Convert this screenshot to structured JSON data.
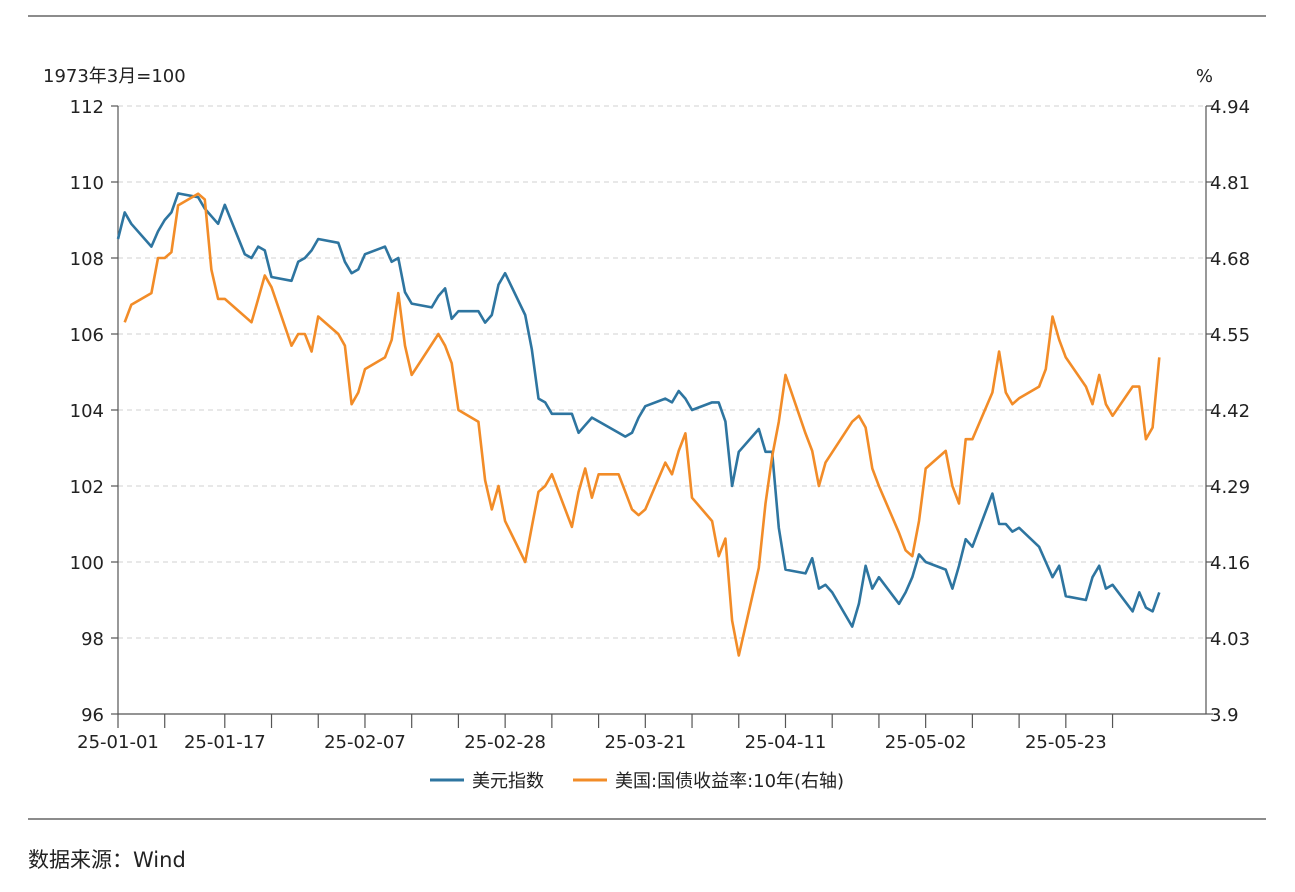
{
  "source_label": "数据来源：Wind",
  "colors": {
    "usd_index": "#2e75a0",
    "us_10y_yield": "#f28c28",
    "grid": "#d0d0d0",
    "axis": "#555555"
  },
  "chart_data": {
    "type": "line",
    "left_axis_unit": "1973年3月=100",
    "right_axis_unit": "%",
    "left_ylim": [
      96,
      112
    ],
    "left_ticks": [
      "96",
      "98",
      "100",
      "102",
      "104",
      "106",
      "108",
      "110",
      "112"
    ],
    "right_ylim": [
      3.9,
      4.94
    ],
    "right_ticks": [
      "3.9",
      "4.03",
      "4.16",
      "4.29",
      "4.42",
      "4.55",
      "4.68",
      "4.81",
      "4.94"
    ],
    "x_range": [
      "2025-01-01",
      "2025-06-13"
    ],
    "x_tick_dates": [
      "2025-01-01",
      "2025-01-08",
      "2025-01-17",
      "2025-01-24",
      "2025-01-31",
      "2025-02-07",
      "2025-02-14",
      "2025-02-21",
      "2025-02-28",
      "2025-03-07",
      "2025-03-14",
      "2025-03-21",
      "2025-03-28",
      "2025-04-04",
      "2025-04-11",
      "2025-04-18",
      "2025-04-25",
      "2025-05-02",
      "2025-05-09",
      "2025-05-16",
      "2025-05-23",
      "2025-05-30"
    ],
    "x_labels": [
      {
        "date": "2025-01-01",
        "label": "25-01-01"
      },
      {
        "date": "2025-01-17",
        "label": "25-01-17"
      },
      {
        "date": "2025-02-07",
        "label": "25-02-07"
      },
      {
        "date": "2025-02-28",
        "label": "25-02-28"
      },
      {
        "date": "2025-03-21",
        "label": "25-03-21"
      },
      {
        "date": "2025-04-11",
        "label": "25-04-11"
      },
      {
        "date": "2025-05-02",
        "label": "25-05-02"
      },
      {
        "date": "2025-05-23",
        "label": "25-05-23"
      }
    ],
    "grid": "horizontal dashed",
    "legend_position": "bottom-center",
    "series": [
      {
        "name": "美元指数",
        "axis": "left",
        "points": [
          [
            "2025-01-01",
            108.5
          ],
          [
            "2025-01-02",
            109.2
          ],
          [
            "2025-01-03",
            108.9
          ],
          [
            "2025-01-06",
            108.3
          ],
          [
            "2025-01-07",
            108.7
          ],
          [
            "2025-01-08",
            109.0
          ],
          [
            "2025-01-09",
            109.2
          ],
          [
            "2025-01-10",
            109.7
          ],
          [
            "2025-01-13",
            109.6
          ],
          [
            "2025-01-14",
            109.3
          ],
          [
            "2025-01-15",
            109.1
          ],
          [
            "2025-01-16",
            108.9
          ],
          [
            "2025-01-17",
            109.4
          ],
          [
            "2025-01-20",
            108.1
          ],
          [
            "2025-01-21",
            108.0
          ],
          [
            "2025-01-22",
            108.3
          ],
          [
            "2025-01-23",
            108.2
          ],
          [
            "2025-01-24",
            107.5
          ],
          [
            "2025-01-27",
            107.4
          ],
          [
            "2025-01-28",
            107.9
          ],
          [
            "2025-01-29",
            108.0
          ],
          [
            "2025-01-30",
            108.2
          ],
          [
            "2025-01-31",
            108.5
          ],
          [
            "2025-02-03",
            108.4
          ],
          [
            "2025-02-04",
            107.9
          ],
          [
            "2025-02-05",
            107.6
          ],
          [
            "2025-02-06",
            107.7
          ],
          [
            "2025-02-07",
            108.1
          ],
          [
            "2025-02-10",
            108.3
          ],
          [
            "2025-02-11",
            107.9
          ],
          [
            "2025-02-12",
            108.0
          ],
          [
            "2025-02-13",
            107.1
          ],
          [
            "2025-02-14",
            106.8
          ],
          [
            "2025-02-17",
            106.7
          ],
          [
            "2025-02-18",
            107.0
          ],
          [
            "2025-02-19",
            107.2
          ],
          [
            "2025-02-20",
            106.4
          ],
          [
            "2025-02-21",
            106.6
          ],
          [
            "2025-02-24",
            106.6
          ],
          [
            "2025-02-25",
            106.3
          ],
          [
            "2025-02-26",
            106.5
          ],
          [
            "2025-02-27",
            107.3
          ],
          [
            "2025-02-28",
            107.6
          ],
          [
            "2025-03-03",
            106.5
          ],
          [
            "2025-03-04",
            105.6
          ],
          [
            "2025-03-05",
            104.3
          ],
          [
            "2025-03-06",
            104.2
          ],
          [
            "2025-03-07",
            103.9
          ],
          [
            "2025-03-10",
            103.9
          ],
          [
            "2025-03-11",
            103.4
          ],
          [
            "2025-03-12",
            103.6
          ],
          [
            "2025-03-13",
            103.8
          ],
          [
            "2025-03-14",
            103.7
          ],
          [
            "2025-03-17",
            103.4
          ],
          [
            "2025-03-18",
            103.3
          ],
          [
            "2025-03-19",
            103.4
          ],
          [
            "2025-03-20",
            103.8
          ],
          [
            "2025-03-21",
            104.1
          ],
          [
            "2025-03-24",
            104.3
          ],
          [
            "2025-03-25",
            104.2
          ],
          [
            "2025-03-26",
            104.5
          ],
          [
            "2025-03-27",
            104.3
          ],
          [
            "2025-03-28",
            104.0
          ],
          [
            "2025-03-31",
            104.2
          ],
          [
            "2025-04-01",
            104.2
          ],
          [
            "2025-04-02",
            103.7
          ],
          [
            "2025-04-03",
            102.0
          ],
          [
            "2025-04-04",
            102.9
          ],
          [
            "2025-04-07",
            103.5
          ],
          [
            "2025-04-08",
            102.9
          ],
          [
            "2025-04-09",
            102.9
          ],
          [
            "2025-04-10",
            100.9
          ],
          [
            "2025-04-11",
            99.8
          ],
          [
            "2025-04-14",
            99.7
          ],
          [
            "2025-04-15",
            100.1
          ],
          [
            "2025-04-16",
            99.3
          ],
          [
            "2025-04-17",
            99.4
          ],
          [
            "2025-04-18",
            99.2
          ],
          [
            "2025-04-21",
            98.3
          ],
          [
            "2025-04-22",
            98.9
          ],
          [
            "2025-04-23",
            99.9
          ],
          [
            "2025-04-24",
            99.3
          ],
          [
            "2025-04-25",
            99.6
          ],
          [
            "2025-04-28",
            98.9
          ],
          [
            "2025-04-29",
            99.2
          ],
          [
            "2025-04-30",
            99.6
          ],
          [
            "2025-05-01",
            100.2
          ],
          [
            "2025-05-02",
            100.0
          ],
          [
            "2025-05-05",
            99.8
          ],
          [
            "2025-05-06",
            99.3
          ],
          [
            "2025-05-07",
            99.9
          ],
          [
            "2025-05-08",
            100.6
          ],
          [
            "2025-05-09",
            100.4
          ],
          [
            "2025-05-12",
            101.8
          ],
          [
            "2025-05-13",
            101.0
          ],
          [
            "2025-05-14",
            101.0
          ],
          [
            "2025-05-15",
            100.8
          ],
          [
            "2025-05-16",
            100.9
          ],
          [
            "2025-05-19",
            100.4
          ],
          [
            "2025-05-20",
            100.0
          ],
          [
            "2025-05-21",
            99.6
          ],
          [
            "2025-05-22",
            99.9
          ],
          [
            "2025-05-23",
            99.1
          ],
          [
            "2025-05-26",
            99.0
          ],
          [
            "2025-05-27",
            99.6
          ],
          [
            "2025-05-28",
            99.9
          ],
          [
            "2025-05-29",
            99.3
          ],
          [
            "2025-05-30",
            99.4
          ],
          [
            "2025-06-02",
            98.7
          ],
          [
            "2025-06-03",
            99.2
          ],
          [
            "2025-06-04",
            98.8
          ],
          [
            "2025-06-05",
            98.7
          ],
          [
            "2025-06-06",
            99.2
          ]
        ]
      },
      {
        "name": "美国:国债收益率:10年(右轴)",
        "axis": "right",
        "points": [
          [
            "2025-01-02",
            4.57
          ],
          [
            "2025-01-03",
            4.6
          ],
          [
            "2025-01-06",
            4.62
          ],
          [
            "2025-01-07",
            4.68
          ],
          [
            "2025-01-08",
            4.68
          ],
          [
            "2025-01-09",
            4.69
          ],
          [
            "2025-01-10",
            4.77
          ],
          [
            "2025-01-13",
            4.79
          ],
          [
            "2025-01-14",
            4.78
          ],
          [
            "2025-01-15",
            4.66
          ],
          [
            "2025-01-16",
            4.61
          ],
          [
            "2025-01-17",
            4.61
          ],
          [
            "2025-01-21",
            4.57
          ],
          [
            "2025-01-22",
            4.61
          ],
          [
            "2025-01-23",
            4.65
          ],
          [
            "2025-01-24",
            4.63
          ],
          [
            "2025-01-27",
            4.53
          ],
          [
            "2025-01-28",
            4.55
          ],
          [
            "2025-01-29",
            4.55
          ],
          [
            "2025-01-30",
            4.52
          ],
          [
            "2025-01-31",
            4.58
          ],
          [
            "2025-02-03",
            4.55
          ],
          [
            "2025-02-04",
            4.53
          ],
          [
            "2025-02-05",
            4.43
          ],
          [
            "2025-02-06",
            4.45
          ],
          [
            "2025-02-07",
            4.49
          ],
          [
            "2025-02-10",
            4.51
          ],
          [
            "2025-02-11",
            4.54
          ],
          [
            "2025-02-12",
            4.62
          ],
          [
            "2025-02-13",
            4.53
          ],
          [
            "2025-02-14",
            4.48
          ],
          [
            "2025-02-18",
            4.55
          ],
          [
            "2025-02-19",
            4.53
          ],
          [
            "2025-02-20",
            4.5
          ],
          [
            "2025-02-21",
            4.42
          ],
          [
            "2025-02-24",
            4.4
          ],
          [
            "2025-02-25",
            4.3
          ],
          [
            "2025-02-26",
            4.25
          ],
          [
            "2025-02-27",
            4.29
          ],
          [
            "2025-02-28",
            4.23
          ],
          [
            "2025-03-03",
            4.16
          ],
          [
            "2025-03-04",
            4.22
          ],
          [
            "2025-03-05",
            4.28
          ],
          [
            "2025-03-06",
            4.29
          ],
          [
            "2025-03-07",
            4.31
          ],
          [
            "2025-03-10",
            4.22
          ],
          [
            "2025-03-11",
            4.28
          ],
          [
            "2025-03-12",
            4.32
          ],
          [
            "2025-03-13",
            4.27
          ],
          [
            "2025-03-14",
            4.31
          ],
          [
            "2025-03-17",
            4.31
          ],
          [
            "2025-03-18",
            4.28
          ],
          [
            "2025-03-19",
            4.25
          ],
          [
            "2025-03-20",
            4.24
          ],
          [
            "2025-03-21",
            4.25
          ],
          [
            "2025-03-24",
            4.33
          ],
          [
            "2025-03-25",
            4.31
          ],
          [
            "2025-03-26",
            4.35
          ],
          [
            "2025-03-27",
            4.38
          ],
          [
            "2025-03-28",
            4.27
          ],
          [
            "2025-03-31",
            4.23
          ],
          [
            "2025-04-01",
            4.17
          ],
          [
            "2025-04-02",
            4.2
          ],
          [
            "2025-04-03",
            4.06
          ],
          [
            "2025-04-04",
            4.0
          ],
          [
            "2025-04-07",
            4.15
          ],
          [
            "2025-04-08",
            4.26
          ],
          [
            "2025-04-09",
            4.34
          ],
          [
            "2025-04-10",
            4.4
          ],
          [
            "2025-04-11",
            4.48
          ],
          [
            "2025-04-14",
            4.38
          ],
          [
            "2025-04-15",
            4.35
          ],
          [
            "2025-04-16",
            4.29
          ],
          [
            "2025-04-17",
            4.33
          ],
          [
            "2025-04-21",
            4.4
          ],
          [
            "2025-04-22",
            4.41
          ],
          [
            "2025-04-23",
            4.39
          ],
          [
            "2025-04-24",
            4.32
          ],
          [
            "2025-04-25",
            4.29
          ],
          [
            "2025-04-28",
            4.21
          ],
          [
            "2025-04-29",
            4.18
          ],
          [
            "2025-04-30",
            4.17
          ],
          [
            "2025-05-01",
            4.23
          ],
          [
            "2025-05-02",
            4.32
          ],
          [
            "2025-05-05",
            4.35
          ],
          [
            "2025-05-06",
            4.29
          ],
          [
            "2025-05-07",
            4.26
          ],
          [
            "2025-05-08",
            4.37
          ],
          [
            "2025-05-09",
            4.37
          ],
          [
            "2025-05-12",
            4.45
          ],
          [
            "2025-05-13",
            4.52
          ],
          [
            "2025-05-14",
            4.45
          ],
          [
            "2025-05-15",
            4.43
          ],
          [
            "2025-05-16",
            4.44
          ],
          [
            "2025-05-19",
            4.46
          ],
          [
            "2025-05-20",
            4.49
          ],
          [
            "2025-05-21",
            4.58
          ],
          [
            "2025-05-22",
            4.54
          ],
          [
            "2025-05-23",
            4.51
          ],
          [
            "2025-05-26",
            4.46
          ],
          [
            "2025-05-27",
            4.43
          ],
          [
            "2025-05-28",
            4.48
          ],
          [
            "2025-05-29",
            4.43
          ],
          [
            "2025-05-30",
            4.41
          ],
          [
            "2025-06-02",
            4.46
          ],
          [
            "2025-06-03",
            4.46
          ],
          [
            "2025-06-04",
            4.37
          ],
          [
            "2025-06-05",
            4.39
          ],
          [
            "2025-06-06",
            4.51
          ]
        ]
      }
    ]
  }
}
